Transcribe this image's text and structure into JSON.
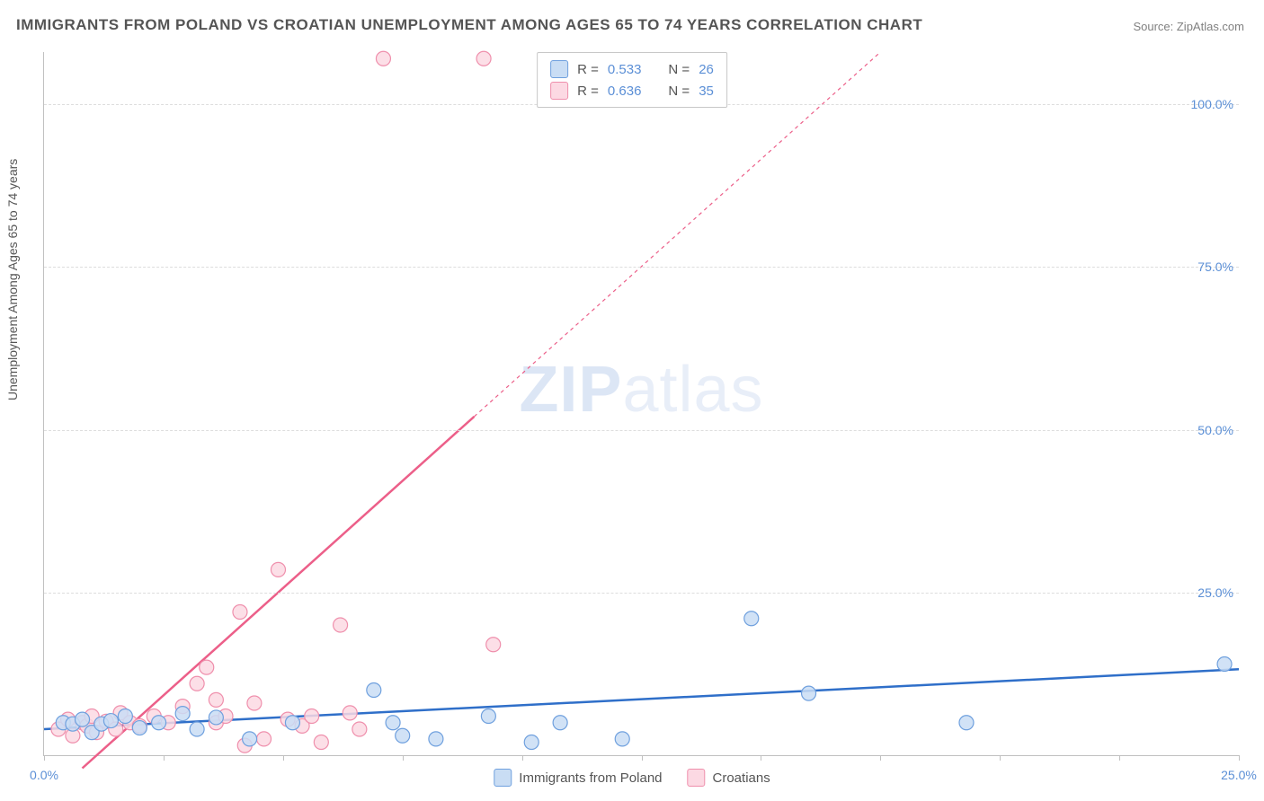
{
  "title": "IMMIGRANTS FROM POLAND VS CROATIAN UNEMPLOYMENT AMONG AGES 65 TO 74 YEARS CORRELATION CHART",
  "source_prefix": "Source: ",
  "source_name": "ZipAtlas.com",
  "y_axis_label": "Unemployment Among Ages 65 to 74 years",
  "watermark": {
    "bold": "ZIP",
    "rest": "atlas"
  },
  "chart": {
    "type": "scatter-with-trend",
    "background_color": "#ffffff",
    "grid_color": "#dddddd",
    "axis_color": "#c0c0c0",
    "tick_label_color": "#5b8fd6",
    "xlim": [
      0,
      25
    ],
    "ylim": [
      0,
      108
    ],
    "x_ticks": [
      0,
      2.5,
      5,
      7.5,
      10,
      12.5,
      15,
      17.5,
      20,
      22.5,
      25
    ],
    "x_tick_labels": {
      "0": "0.0%",
      "25": "25.0%"
    },
    "y_ticks": [
      25,
      50,
      75,
      100
    ],
    "y_tick_labels": {
      "25": "25.0%",
      "50": "50.0%",
      "75": "75.0%",
      "100": "100.0%"
    },
    "marker_radius": 8,
    "marker_stroke_width": 1.2,
    "trend_line_width": 2.5,
    "series": [
      {
        "id": "poland",
        "legend_label": "Immigrants from Poland",
        "fill_color": "#c9ddf4",
        "stroke_color": "#6fa0de",
        "line_color": "#2f6fc9",
        "R": "0.533",
        "N": "26",
        "trend": {
          "x1": 0,
          "y1": 4.0,
          "x2": 25,
          "y2": 13.2,
          "dashed_from_x": null
        },
        "points": [
          {
            "x": 0.4,
            "y": 5.0
          },
          {
            "x": 0.6,
            "y": 4.8
          },
          {
            "x": 0.8,
            "y": 5.5
          },
          {
            "x": 1.0,
            "y": 3.5
          },
          {
            "x": 1.2,
            "y": 4.8
          },
          {
            "x": 1.4,
            "y": 5.3
          },
          {
            "x": 1.7,
            "y": 6.0
          },
          {
            "x": 2.0,
            "y": 4.2
          },
          {
            "x": 2.4,
            "y": 5.0
          },
          {
            "x": 2.9,
            "y": 6.4
          },
          {
            "x": 3.2,
            "y": 4.0
          },
          {
            "x": 3.6,
            "y": 5.8
          },
          {
            "x": 4.3,
            "y": 2.5
          },
          {
            "x": 5.2,
            "y": 5.0
          },
          {
            "x": 6.9,
            "y": 10.0
          },
          {
            "x": 7.3,
            "y": 5.0
          },
          {
            "x": 7.5,
            "y": 3.0
          },
          {
            "x": 8.2,
            "y": 2.5
          },
          {
            "x": 9.3,
            "y": 6.0
          },
          {
            "x": 10.2,
            "y": 2.0
          },
          {
            "x": 10.8,
            "y": 5.0
          },
          {
            "x": 12.1,
            "y": 2.5
          },
          {
            "x": 14.8,
            "y": 21.0
          },
          {
            "x": 16.0,
            "y": 9.5
          },
          {
            "x": 19.3,
            "y": 5.0
          },
          {
            "x": 24.7,
            "y": 14.0
          }
        ]
      },
      {
        "id": "croatians",
        "legend_label": "Croatians",
        "fill_color": "#fcd9e3",
        "stroke_color": "#ef8fac",
        "line_color": "#ec5f89",
        "R": "0.636",
        "N": "35",
        "trend": {
          "x1": 0.8,
          "y1": -2,
          "x2": 17.5,
          "y2": 108,
          "dashed_from_x": 9.0
        },
        "points": [
          {
            "x": 0.3,
            "y": 4.0
          },
          {
            "x": 0.5,
            "y": 5.5
          },
          {
            "x": 0.6,
            "y": 3.0
          },
          {
            "x": 0.8,
            "y": 5.0
          },
          {
            "x": 0.9,
            "y": 4.5
          },
          {
            "x": 1.0,
            "y": 6.0
          },
          {
            "x": 1.1,
            "y": 3.5
          },
          {
            "x": 1.3,
            "y": 5.2
          },
          {
            "x": 1.5,
            "y": 4.0
          },
          {
            "x": 1.6,
            "y": 6.5
          },
          {
            "x": 1.8,
            "y": 5.0
          },
          {
            "x": 2.0,
            "y": 4.5
          },
          {
            "x": 2.3,
            "y": 6.0
          },
          {
            "x": 2.6,
            "y": 5.0
          },
          {
            "x": 2.9,
            "y": 7.5
          },
          {
            "x": 3.2,
            "y": 11.0
          },
          {
            "x": 3.4,
            "y": 13.5
          },
          {
            "x": 3.6,
            "y": 5.0
          },
          {
            "x": 3.6,
            "y": 8.5
          },
          {
            "x": 3.8,
            "y": 6.0
          },
          {
            "x": 4.1,
            "y": 22.0
          },
          {
            "x": 4.2,
            "y": 1.5
          },
          {
            "x": 4.4,
            "y": 8.0
          },
          {
            "x": 4.6,
            "y": 2.5
          },
          {
            "x": 4.9,
            "y": 28.5
          },
          {
            "x": 5.1,
            "y": 5.5
          },
          {
            "x": 5.4,
            "y": 4.5
          },
          {
            "x": 5.6,
            "y": 6.0
          },
          {
            "x": 5.8,
            "y": 2.0
          },
          {
            "x": 6.2,
            "y": 20.0
          },
          {
            "x": 6.4,
            "y": 6.5
          },
          {
            "x": 6.6,
            "y": 4.0
          },
          {
            "x": 7.1,
            "y": 107.0
          },
          {
            "x": 9.2,
            "y": 107.0
          },
          {
            "x": 9.4,
            "y": 17.0
          }
        ]
      }
    ]
  },
  "legend_box": {
    "r_prefix": "R = ",
    "n_prefix": "N = "
  }
}
